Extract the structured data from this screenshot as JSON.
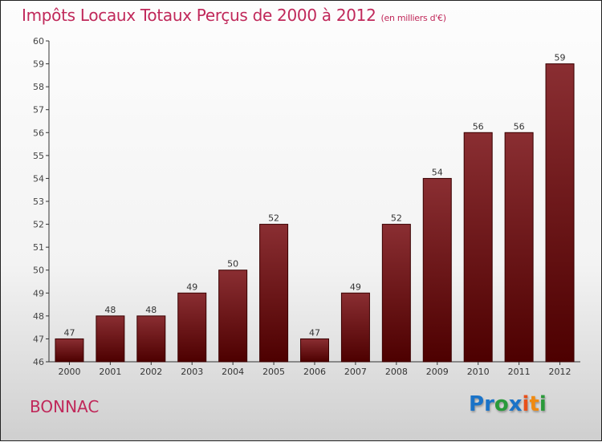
{
  "chart_data": {
    "type": "bar",
    "title": "Impôts Locaux Totaux Perçus de 2000 à 2012",
    "subtitle": "(en milliers d'€)",
    "categories": [
      "2000",
      "2001",
      "2002",
      "2003",
      "2004",
      "2005",
      "2006",
      "2007",
      "2008",
      "2009",
      "2010",
      "2011",
      "2012"
    ],
    "values": [
      47,
      48,
      48,
      49,
      50,
      52,
      47,
      49,
      52,
      54,
      56,
      56,
      59
    ],
    "ylim": [
      46,
      60
    ],
    "yticks": [
      46,
      47,
      48,
      49,
      50,
      51,
      52,
      53,
      54,
      55,
      56,
      57,
      58,
      59,
      60
    ],
    "xlabel": "",
    "ylabel": "",
    "bar_color": "#7a1a1e"
  },
  "city": "BONNAC",
  "logo": "Proxiti"
}
